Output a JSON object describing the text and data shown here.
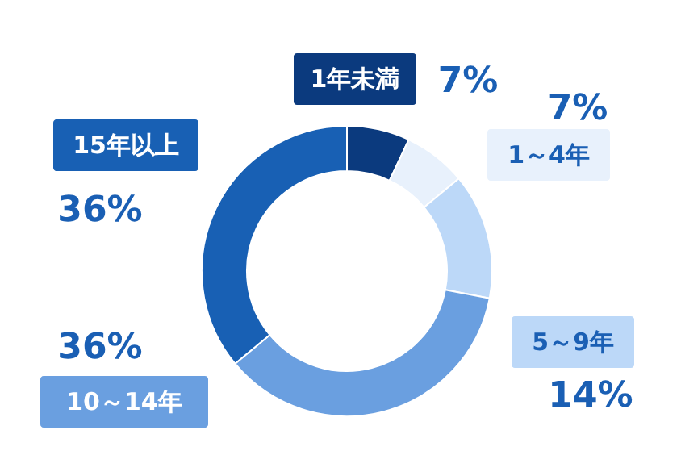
{
  "chart_data": {
    "type": "donut",
    "categories": [
      "1年未満",
      "1～4年",
      "5～9年",
      "10～14年",
      "15年以上"
    ],
    "values": [
      7,
      7,
      14,
      36,
      36
    ],
    "value_labels": [
      "7%",
      "7%",
      "14%",
      "36%",
      "36%"
    ],
    "colors": [
      "#0b3a7e",
      "#e8f1fc",
      "#bcd8f8",
      "#6a9fe0",
      "#1860b4"
    ]
  }
}
